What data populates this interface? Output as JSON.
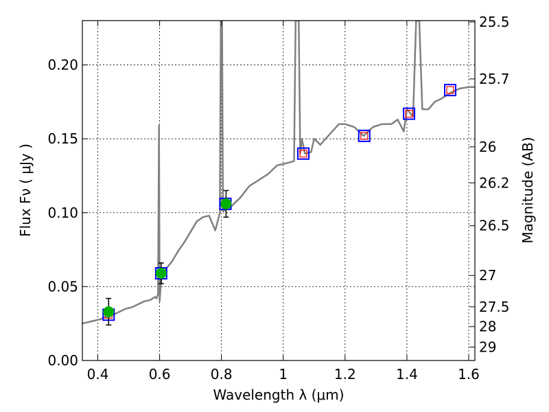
{
  "chart_data": {
    "type": "line",
    "x_axis": {
      "label": "Wavelength  λ (μm)",
      "range": [
        0.35,
        1.62
      ],
      "ticks": [
        0.4,
        0.6,
        0.8,
        1.0,
        1.2,
        1.4,
        1.6
      ],
      "tick_labels": [
        "0.4",
        "0.6",
        "0.8",
        "1",
        "1.2",
        "1.4",
        "1.6"
      ]
    },
    "y_axis": {
      "label": "Flux  Fν  ( μJy )",
      "range": [
        0.0,
        0.23
      ],
      "ticks": [
        0.0,
        0.05,
        0.1,
        0.15,
        0.2
      ],
      "tick_labels": [
        "0.00",
        "0.05",
        "0.10",
        "0.15",
        "0.20"
      ]
    },
    "y2_axis": {
      "label": "Magnitude (AB)",
      "ticks": [
        25.5,
        25.7,
        26,
        26.2,
        26.5,
        27,
        27.5,
        28,
        29
      ],
      "tick_labels": [
        "25.5",
        "25.7",
        "26",
        "26.2",
        "26.5",
        "27",
        "27.5",
        "28",
        "29"
      ]
    },
    "grid": true,
    "colors": {
      "spectrum": "#808080",
      "model_box": "#0000ff",
      "model_inner": "#ff0000",
      "observed": "#00b000",
      "error_bar": "#000000"
    },
    "spectrum": [
      [
        0.35,
        0.025
      ],
      [
        0.37,
        0.026
      ],
      [
        0.39,
        0.027
      ],
      [
        0.41,
        0.028
      ],
      [
        0.43,
        0.03
      ],
      [
        0.45,
        0.031
      ],
      [
        0.47,
        0.033
      ],
      [
        0.49,
        0.035
      ],
      [
        0.51,
        0.036
      ],
      [
        0.53,
        0.038
      ],
      [
        0.55,
        0.04
      ],
      [
        0.57,
        0.041
      ],
      [
        0.585,
        0.043
      ],
      [
        0.59,
        0.042
      ],
      [
        0.595,
        0.045
      ],
      [
        0.598,
        0.159
      ],
      [
        0.6,
        0.04
      ],
      [
        0.605,
        0.055
      ],
      [
        0.62,
        0.062
      ],
      [
        0.64,
        0.067
      ],
      [
        0.66,
        0.074
      ],
      [
        0.68,
        0.08
      ],
      [
        0.7,
        0.087
      ],
      [
        0.72,
        0.094
      ],
      [
        0.74,
        0.097
      ],
      [
        0.76,
        0.098
      ],
      [
        0.78,
        0.088
      ],
      [
        0.795,
        0.1
      ],
      [
        0.798,
        0.23
      ],
      [
        0.802,
        0.23
      ],
      [
        0.805,
        0.101
      ],
      [
        0.83,
        0.104
      ],
      [
        0.86,
        0.11
      ],
      [
        0.89,
        0.118
      ],
      [
        0.92,
        0.122
      ],
      [
        0.95,
        0.126
      ],
      [
        0.98,
        0.132
      ],
      [
        1.0,
        0.133
      ],
      [
        1.02,
        0.134
      ],
      [
        1.035,
        0.135
      ],
      [
        1.04,
        0.23
      ],
      [
        1.05,
        0.23
      ],
      [
        1.055,
        0.14
      ],
      [
        1.06,
        0.15
      ],
      [
        1.07,
        0.14
      ],
      [
        1.09,
        0.141
      ],
      [
        1.1,
        0.15
      ],
      [
        1.12,
        0.146
      ],
      [
        1.15,
        0.153
      ],
      [
        1.18,
        0.16
      ],
      [
        1.2,
        0.16
      ],
      [
        1.23,
        0.158
      ],
      [
        1.26,
        0.152
      ],
      [
        1.29,
        0.158
      ],
      [
        1.32,
        0.16
      ],
      [
        1.35,
        0.16
      ],
      [
        1.37,
        0.163
      ],
      [
        1.39,
        0.155
      ],
      [
        1.4,
        0.17
      ],
      [
        1.42,
        0.165
      ],
      [
        1.43,
        0.23
      ],
      [
        1.44,
        0.23
      ],
      [
        1.45,
        0.17
      ],
      [
        1.47,
        0.17
      ],
      [
        1.49,
        0.175
      ],
      [
        1.51,
        0.177
      ],
      [
        1.54,
        0.181
      ],
      [
        1.57,
        0.184
      ],
      [
        1.6,
        0.185
      ],
      [
        1.62,
        0.185
      ]
    ],
    "model_points": [
      {
        "x": 0.435,
        "y": 0.031
      },
      {
        "x": 0.605,
        "y": 0.059
      },
      {
        "x": 0.813,
        "y": 0.106
      },
      {
        "x": 1.065,
        "y": 0.14
      },
      {
        "x": 1.262,
        "y": 0.152
      },
      {
        "x": 1.407,
        "y": 0.167
      },
      {
        "x": 1.54,
        "y": 0.183
      }
    ],
    "observed_points": [
      {
        "x": 0.435,
        "y": 0.033,
        "err": 0.009
      },
      {
        "x": 0.605,
        "y": 0.059,
        "err": 0.007
      },
      {
        "x": 0.815,
        "y": 0.106,
        "err": 0.009
      }
    ]
  }
}
